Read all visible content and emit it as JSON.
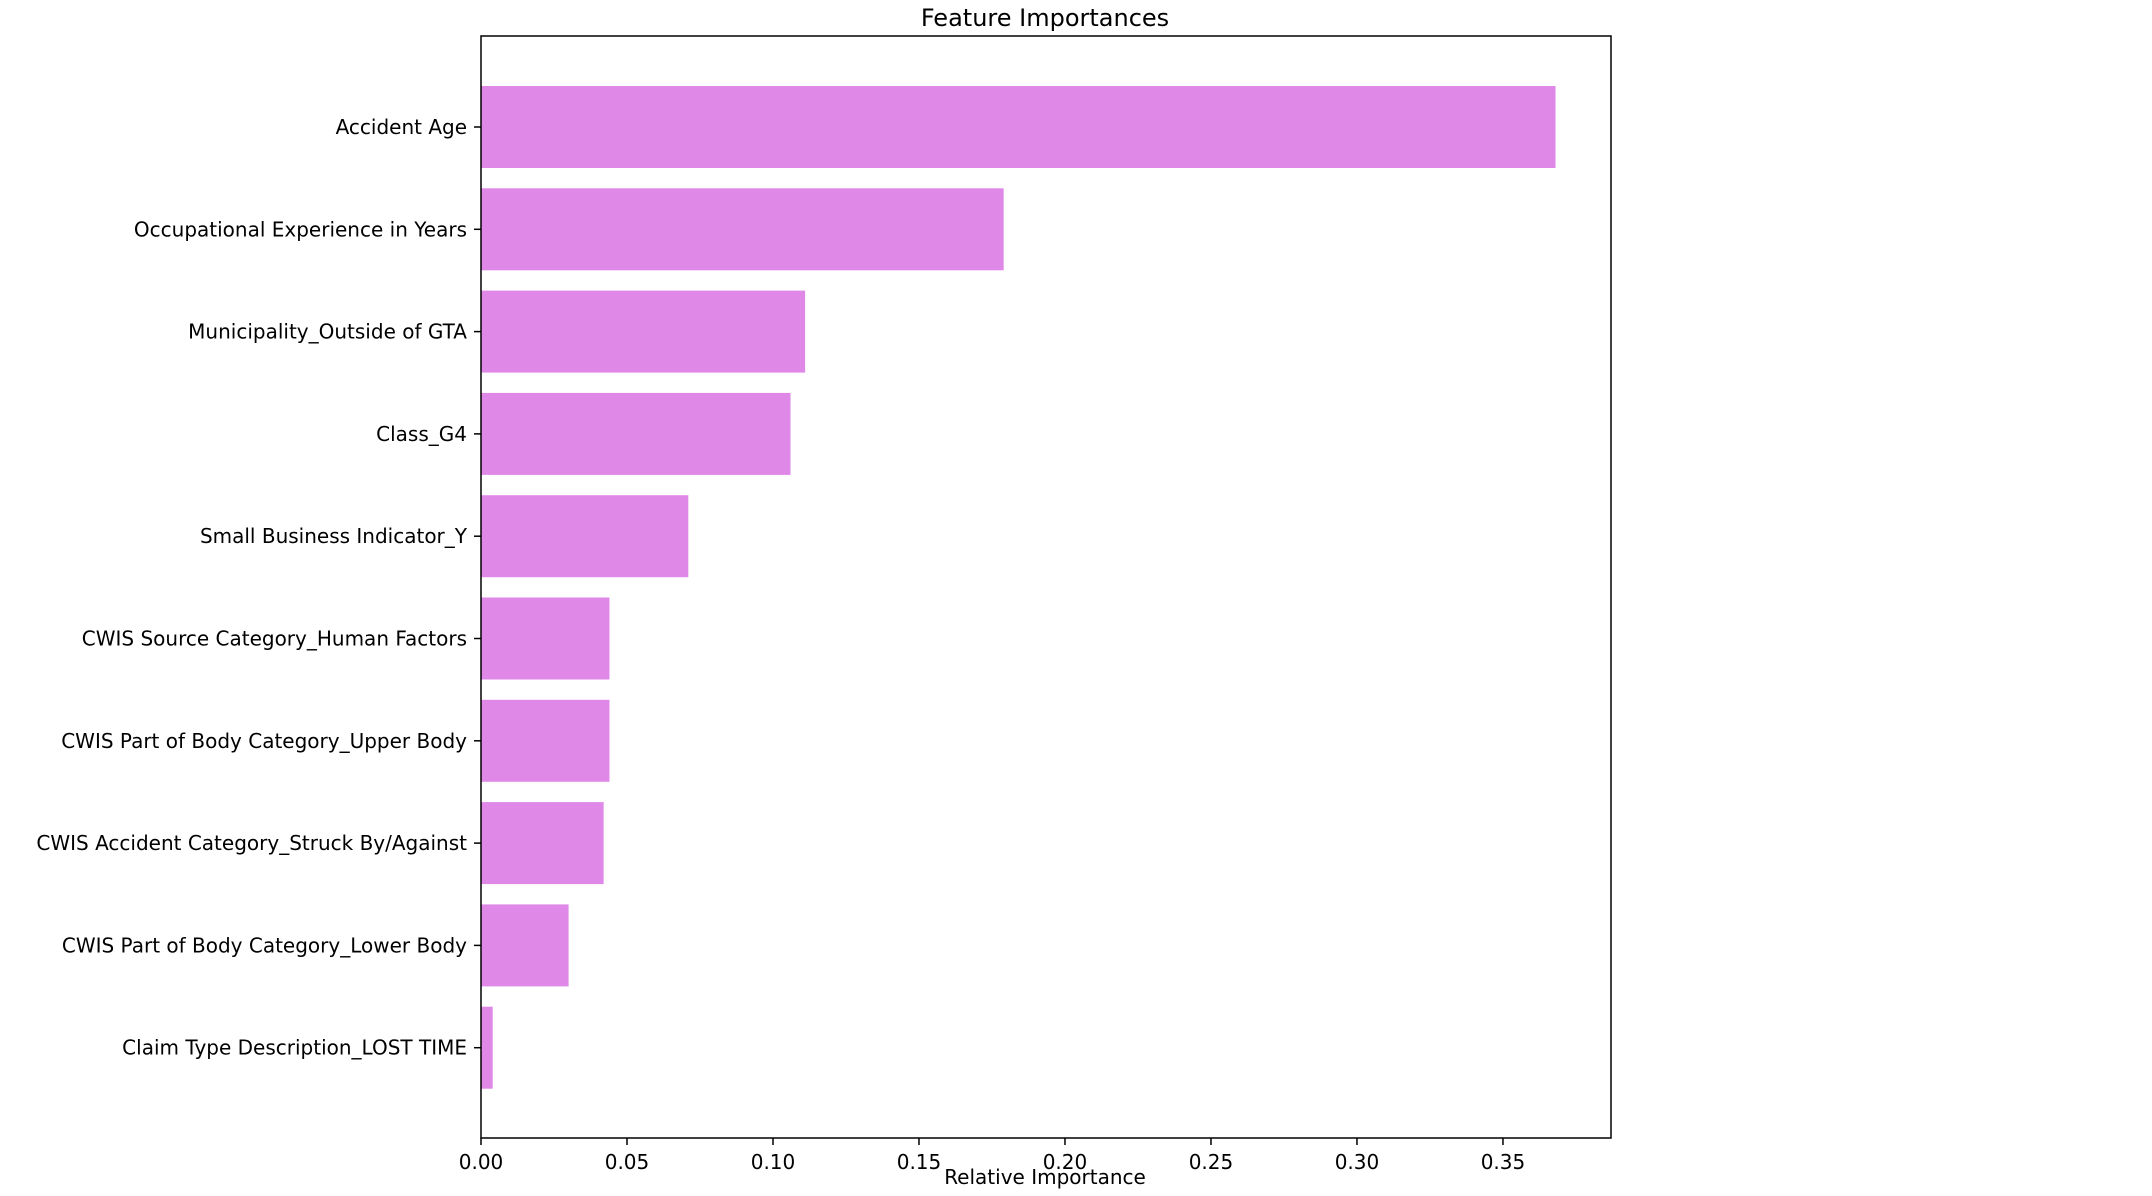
{
  "chart_data": {
    "type": "bar",
    "orientation": "horizontal",
    "title": "Feature Importances",
    "xlabel": "Relative Importance",
    "ylabel": "",
    "categories": [
      "Accident Age",
      "Occupational Experience in Years",
      "Municipality_Outside of GTA",
      "Class_G4",
      "Small Business Indicator_Y",
      "CWIS Source Category_Human Factors",
      "CWIS Part of Body Category_Upper Body",
      "CWIS Accident Category_Struck By/Against",
      "CWIS Part of Body Category_Lower Body",
      "Claim Type Description_LOST TIME"
    ],
    "values": [
      0.368,
      0.179,
      0.111,
      0.106,
      0.071,
      0.044,
      0.044,
      0.042,
      0.03,
      0.004
    ],
    "xlim": [
      0.0,
      0.387
    ],
    "xticks": [
      0.0,
      0.05,
      0.1,
      0.15,
      0.2,
      0.25,
      0.3,
      0.35
    ],
    "xtick_labels": [
      "0.00",
      "0.05",
      "0.10",
      "0.15",
      "0.20",
      "0.25",
      "0.30",
      "0.35"
    ],
    "bar_color": "#df88e8",
    "grid": false,
    "legend": false
  }
}
